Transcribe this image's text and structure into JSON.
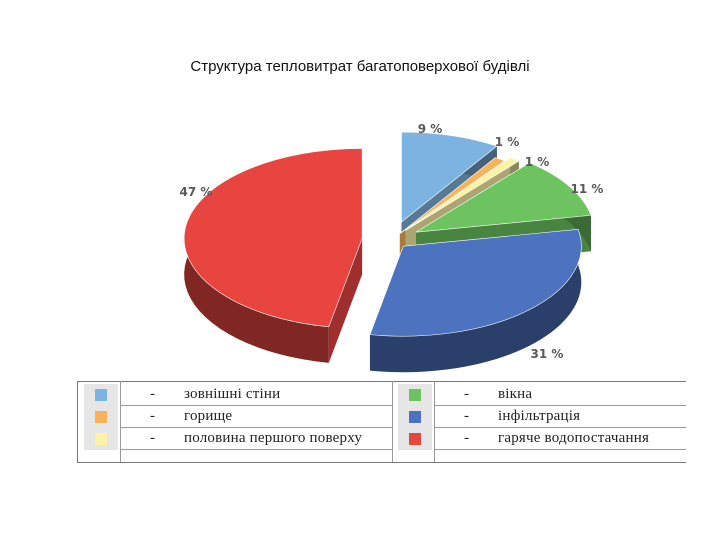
{
  "title": "Структура тепловитрат багатоповерхової будівлі",
  "chart_data": {
    "type": "pie",
    "title": "Структура тепловитрат багатоповерхової будівлі",
    "slices": [
      {
        "label": "зовнішні стіни",
        "value": 9,
        "value_label": "9 %",
        "color": "#7db3e0"
      },
      {
        "label": "горище",
        "value": 1,
        "value_label": "1 %",
        "color": "#f6b35b"
      },
      {
        "label": "половина першого поверху",
        "value": 1,
        "value_label": "1 %",
        "color": "#fdf3a6"
      },
      {
        "label": "вікна",
        "value": 11,
        "value_label": "11 %",
        "color": "#6cc35f"
      },
      {
        "label": "інфільтрація",
        "value": 31,
        "value_label": "31 %",
        "color": "#4c72c0"
      },
      {
        "label": "гаряче водопостачання",
        "value": 47,
        "value_label": "47 %",
        "color": "#e84540"
      }
    ],
    "exploded": true,
    "three_d": true,
    "legend_position": "bottom"
  },
  "legend": {
    "dash": "-",
    "items": [
      {
        "text": "зовнішні стіни",
        "color": "#7db3e0"
      },
      {
        "text": "горище",
        "color": "#f6b35b"
      },
      {
        "text": "половина першого поверху",
        "color": "#fdf3a6"
      },
      {
        "text": "вікна",
        "color": "#6cc35f"
      },
      {
        "text": "інфільтрація",
        "color": "#4c72c0"
      },
      {
        "text": "гаряче водопостачання",
        "color": "#e84540"
      }
    ]
  }
}
